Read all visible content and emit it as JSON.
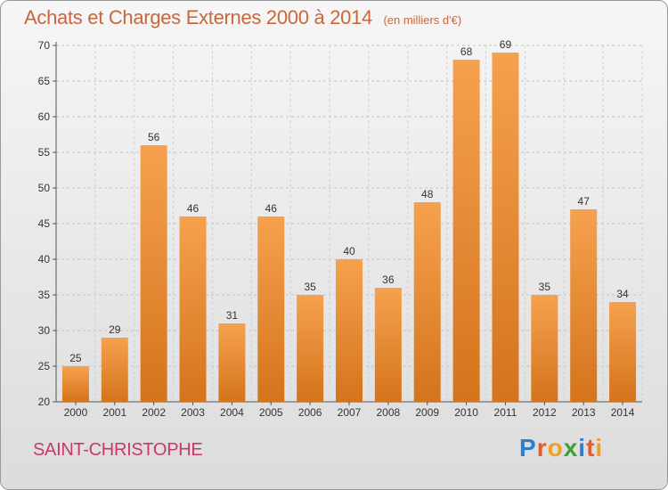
{
  "header": {
    "title": "Achats et Charges Externes 2000 à 2014",
    "subtitle": "(en milliers d'€)"
  },
  "footer": {
    "commune": "SAINT-CHRISTOPHE",
    "logo_letters": [
      {
        "ch": "P",
        "color": "#2f7fcf"
      },
      {
        "ch": "r",
        "color": "#e85a2a"
      },
      {
        "ch": "o",
        "color": "#f0a020"
      },
      {
        "ch": "x",
        "color": "#3aa335"
      },
      {
        "ch": "i",
        "color": "#2f7fcf"
      },
      {
        "ch": "t",
        "color": "#e85a2a"
      },
      {
        "ch": "i",
        "color": "#f0a020"
      }
    ]
  },
  "colors": {
    "bar_top": "#f6a14e",
    "bar_bottom": "#d4741c",
    "accent": "#c8673d",
    "commune": "#c8386a"
  },
  "chart_data": {
    "type": "bar",
    "title": "Achats et Charges Externes 2000 à 2014",
    "subtitle": "(en milliers d'€)",
    "xlabel": "",
    "ylabel": "",
    "categories": [
      "2000",
      "2001",
      "2002",
      "2003",
      "2004",
      "2005",
      "2006",
      "2007",
      "2008",
      "2009",
      "2010",
      "2011",
      "2012",
      "2013",
      "2014"
    ],
    "values": [
      25,
      29,
      56,
      46,
      31,
      46,
      35,
      40,
      36,
      48,
      68,
      69,
      35,
      47,
      34
    ],
    "ylim": [
      20,
      70
    ],
    "yticks": [
      20,
      25,
      30,
      35,
      40,
      45,
      50,
      55,
      60,
      65,
      70
    ],
    "grid": true,
    "data_labels": true
  }
}
